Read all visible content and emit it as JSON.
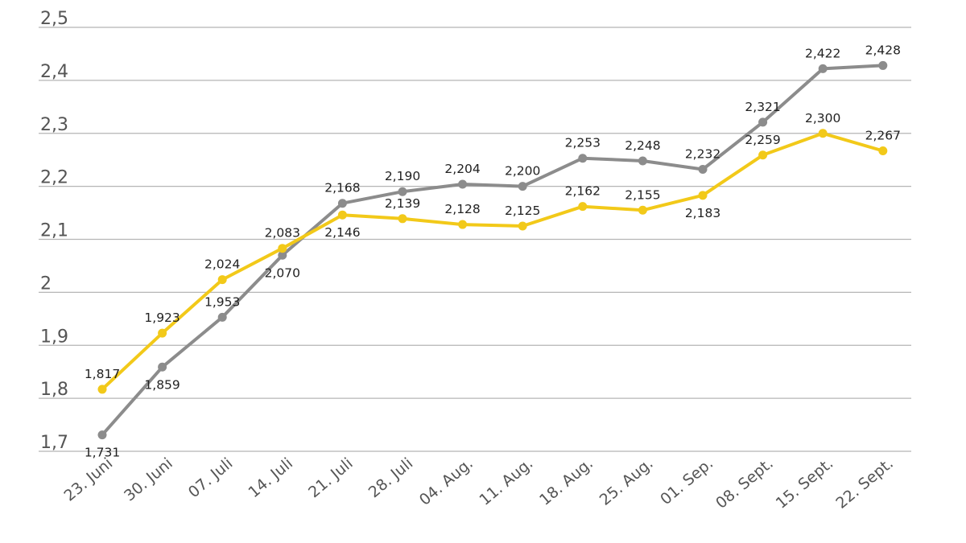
{
  "chart_data": {
    "type": "line",
    "title": "",
    "xlabel": "",
    "ylabel": "",
    "ylim": [
      1.7,
      2.5
    ],
    "yticks": [
      {
        "value": 2.5,
        "label": "2,5"
      },
      {
        "value": 2.4,
        "label": "2,4"
      },
      {
        "value": 2.3,
        "label": "2,3"
      },
      {
        "value": 2.2,
        "label": "2,2"
      },
      {
        "value": 2.1,
        "label": "2,1"
      },
      {
        "value": 2.0,
        "label": "2"
      },
      {
        "value": 1.9,
        "label": "1,9"
      },
      {
        "value": 1.8,
        "label": "1,8"
      },
      {
        "value": 1.7,
        "label": "1,7"
      }
    ],
    "categories": [
      "23. Juni",
      "30. Juni",
      "07. Juli",
      "14. Juli",
      "21. Juli",
      "28. Juli",
      "04. Aug.",
      "11. Aug.",
      "18. Aug.",
      "25. Aug.",
      "01. Sep.",
      "08. Sept.",
      "15. Sept.",
      "22. Sept."
    ],
    "grid": true,
    "legend": "none",
    "series": [
      {
        "color": "#8c8c8c",
        "values": [
          1.731,
          1.859,
          1.953,
          2.07,
          2.168,
          2.19,
          2.204,
          2.2,
          2.253,
          2.248,
          2.232,
          2.321,
          2.422,
          2.428
        ],
        "labels": [
          "1,731",
          "1,859",
          "1,953",
          "2,070",
          "2,168",
          "2,190",
          "2,204",
          "2,200",
          "2,253",
          "2,248",
          "2,232",
          "2,321",
          "2,422",
          "2,428"
        ]
      },
      {
        "color": "#f2c919",
        "values": [
          1.817,
          1.923,
          2.024,
          2.083,
          2.146,
          2.139,
          2.128,
          2.125,
          2.162,
          2.155,
          2.183,
          2.259,
          2.3,
          2.267
        ],
        "labels": [
          "1,817",
          "1,923",
          "2,024",
          "2,083",
          "2,146",
          "2,139",
          "2,128",
          "2,125",
          "2,162",
          "2,155",
          "2,183",
          "2,259",
          "2,300",
          "2,267"
        ]
      }
    ]
  }
}
